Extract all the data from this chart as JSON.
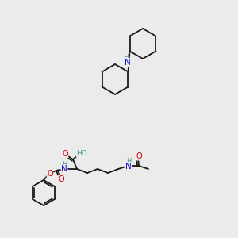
{
  "background_color": "#ebebeb",
  "figsize": [
    3.0,
    3.0
  ],
  "dpi": 100,
  "atom_colors": {
    "N": "#1414cc",
    "O": "#cc0000",
    "H": "#4a9a8a"
  },
  "bond_color": "#1a1a1a",
  "bond_width": 1.3
}
